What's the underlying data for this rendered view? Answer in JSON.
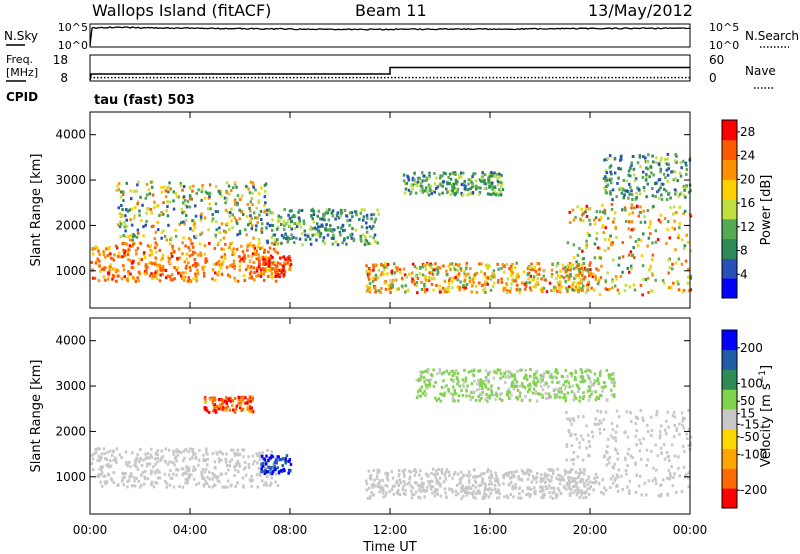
{
  "header": {
    "title": "Wallops Island (fitACF)",
    "beam": "Beam 11",
    "date": "13/May/2012"
  },
  "noise_panel": {
    "left_label": "N.Sky",
    "right_label": "N.Search",
    "left_ticks": [
      "10^5",
      "10^0"
    ],
    "right_ticks": [
      "10^5",
      "10^0"
    ]
  },
  "freq_panel": {
    "left_label_line1": "Freq.",
    "left_label_line2": "[MHz]",
    "left_ticks": [
      "18",
      "8"
    ],
    "right_label": "Nave",
    "right_ticks": [
      "60",
      "0"
    ],
    "cpid_label": "CPID",
    "cpid_value": "tau (fast) 503"
  },
  "colors": {
    "power_scale": [
      "#0000ff",
      "#2850b8",
      "#2e8b57",
      "#55aa55",
      "#bfe040",
      "#ffd000",
      "#ff9000",
      "#ff5a00",
      "#ff0000"
    ],
    "velocity_scale": [
      "#ff0000",
      "#ff6a00",
      "#ffa500",
      "#ffd700",
      "#c8c8c8",
      "#7fd44a",
      "#2e8b57",
      "#1e5fa8",
      "#0000ff"
    ],
    "ground_scatter": "#c8c8c8"
  },
  "chart_data": [
    {
      "type": "line",
      "title": "",
      "xlabel": "",
      "ylabel": "N.Sky",
      "y2label": "N.Search",
      "yscale": "log",
      "ylim": [
        "10^0",
        "10^5"
      ],
      "xlim": [
        "00:00",
        "24:00"
      ],
      "series": [
        {
          "name": "N.Sky",
          "style": "solid",
          "x": [
            0,
            0.02,
            0.3,
            1,
            2,
            3,
            4,
            5,
            6,
            7,
            8,
            9,
            10,
            11,
            12,
            13,
            14,
            15,
            16,
            17,
            18,
            19,
            20,
            21,
            22,
            23,
            24
          ],
          "y": [
            1,
            20000,
            18000,
            30000,
            22000,
            18000,
            16000,
            15000,
            14000,
            12000,
            11000,
            10000,
            9500,
            9000,
            9000,
            9500,
            10000,
            10000,
            10500,
            11000,
            12000,
            13000,
            14000,
            15000,
            16000,
            17000,
            17000
          ]
        }
      ]
    },
    {
      "type": "line",
      "title": "",
      "xlabel": "",
      "ylabel": "Freq. [MHz]",
      "y2label": "Nave",
      "ylim": [
        8,
        18
      ],
      "y2lim": [
        0,
        60
      ],
      "xlim": [
        "00:00",
        "24:00"
      ],
      "series": [
        {
          "name": "Freq.",
          "style": "solid",
          "x": [
            0,
            0.05,
            12.0,
            12.0,
            24
          ],
          "y": [
            8,
            10.5,
            10.5,
            13.2,
            13.2
          ]
        },
        {
          "name": "Nave",
          "style": "dotted",
          "x": [
            0,
            24
          ],
          "y": [
            6,
            6
          ]
        }
      ]
    },
    {
      "type": "heatmap",
      "title": "",
      "xlabel": "",
      "ylabel": "Slant Range [km]",
      "colorbar_label": "Power [dB]",
      "colorbar_ticks": [
        4,
        8,
        12,
        16,
        20,
        24,
        28
      ],
      "crange": [
        0,
        30
      ],
      "ylim": [
        180,
        4500
      ],
      "yticks": [
        1000,
        2000,
        3000,
        4000
      ],
      "xlim": [
        "00:00",
        "24:00"
      ],
      "bands": [
        {
          "t": [
            0.0,
            7.5
          ],
          "r": [
            800,
            1650
          ],
          "p": [
            18,
            28
          ]
        },
        {
          "t": [
            1.0,
            7.0
          ],
          "r": [
            1700,
            3000
          ],
          "p": [
            4,
            24
          ]
        },
        {
          "t": [
            6.5,
            8.0
          ],
          "r": [
            900,
            1350
          ],
          "p": [
            22,
            30
          ]
        },
        {
          "t": [
            7.0,
            11.5
          ],
          "r": [
            1600,
            2400
          ],
          "p": [
            4,
            16
          ]
        },
        {
          "t": [
            11.0,
            20.0
          ],
          "r": [
            550,
            1200
          ],
          "p": [
            10,
            28
          ]
        },
        {
          "t": [
            12.5,
            16.5
          ],
          "r": [
            2700,
            3200
          ],
          "p": [
            4,
            16
          ]
        },
        {
          "t": [
            19.0,
            24.0
          ],
          "r": [
            500,
            2500
          ],
          "p": [
            8,
            28
          ]
        },
        {
          "t": [
            20.5,
            24.0
          ],
          "r": [
            2600,
            3600
          ],
          "p": [
            4,
            16
          ]
        }
      ]
    },
    {
      "type": "heatmap",
      "title": "",
      "xlabel": "Time UT",
      "ylabel": "Slant Range [km]",
      "colorbar_label": "Velocity [m s^-1]",
      "colorbar_ticks": [
        -200,
        -100,
        -50,
        -15,
        15,
        50,
        100,
        200
      ],
      "crange": [
        -250,
        250
      ],
      "ylim": [
        180,
        4500
      ],
      "yticks": [
        1000,
        2000,
        3000,
        4000
      ],
      "xlim": [
        "00:00",
        "24:00"
      ],
      "xticks": [
        "00:00",
        "04:00",
        "08:00",
        "12:00",
        "16:00",
        "20:00",
        "00:00"
      ],
      "bands": [
        {
          "t": [
            0.0,
            7.5
          ],
          "r": [
            800,
            1650
          ],
          "v": [
            -15,
            15
          ],
          "gs": true
        },
        {
          "t": [
            4.5,
            6.5
          ],
          "r": [
            2450,
            2800
          ],
          "v": [
            -230,
            -120
          ]
        },
        {
          "t": [
            6.8,
            8.0
          ],
          "r": [
            1100,
            1500
          ],
          "v": [
            150,
            240
          ]
        },
        {
          "t": [
            11.0,
            20.0
          ],
          "r": [
            550,
            1200
          ],
          "v": [
            -15,
            15
          ],
          "gs": true
        },
        {
          "t": [
            19.0,
            24.0
          ],
          "r": [
            600,
            2500
          ],
          "v": [
            -15,
            15
          ],
          "gs": true
        },
        {
          "t": [
            13.0,
            21.0
          ],
          "r": [
            2700,
            3400
          ],
          "v": [
            15,
            60
          ]
        }
      ]
    }
  ]
}
